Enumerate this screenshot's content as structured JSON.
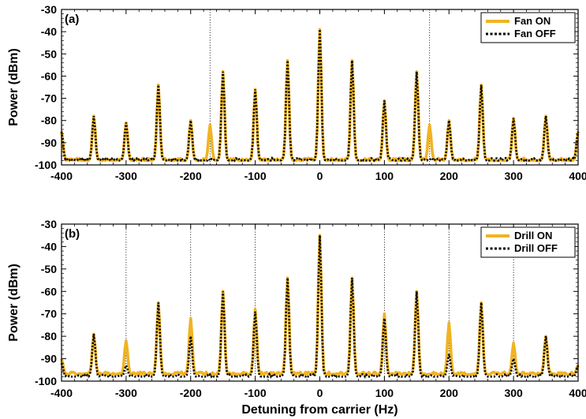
{
  "colors": {
    "on": "#f0b323",
    "off": "#000000"
  },
  "chart_data": [
    {
      "type": "line",
      "panel_label": "(a)",
      "title": "",
      "xlabel": "",
      "ylabel": "Power (dBm)",
      "xlim": [
        -400,
        400
      ],
      "ylim": [
        -100,
        -30
      ],
      "xticks": [
        -400,
        -300,
        -200,
        -100,
        0,
        100,
        200,
        300,
        400
      ],
      "yticks": [
        -30,
        -40,
        -50,
        -60,
        -70,
        -80,
        -90,
        -100
      ],
      "vlines": [
        -170,
        170
      ],
      "legend_position": "top-right",
      "series": [
        {
          "name": "Fan ON",
          "style": "solid",
          "floor": -98,
          "peaks": [
            [
              -400,
              -85
            ],
            [
              -350,
              -78
            ],
            [
              -300,
              -81
            ],
            [
              -250,
              -64
            ],
            [
              -200,
              -80
            ],
            [
              -170,
              -82
            ],
            [
              -150,
              -58
            ],
            [
              -100,
              -66
            ],
            [
              -50,
              -53
            ],
            [
              0,
              -39
            ],
            [
              50,
              -53
            ],
            [
              100,
              -71
            ],
            [
              150,
              -58
            ],
            [
              170,
              -82
            ],
            [
              200,
              -80
            ],
            [
              250,
              -64
            ],
            [
              300,
              -79
            ],
            [
              350,
              -78
            ],
            [
              400,
              -85
            ]
          ]
        },
        {
          "name": "Fan OFF",
          "style": "dotted",
          "floor": -98,
          "peaks": [
            [
              -400,
              -85
            ],
            [
              -350,
              -78
            ],
            [
              -300,
              -81
            ],
            [
              -250,
              -64
            ],
            [
              -200,
              -80
            ],
            [
              -150,
              -58
            ],
            [
              -100,
              -66
            ],
            [
              -50,
              -53
            ],
            [
              0,
              -39
            ],
            [
              50,
              -53
            ],
            [
              100,
              -71
            ],
            [
              150,
              -58
            ],
            [
              200,
              -80
            ],
            [
              250,
              -64
            ],
            [
              300,
              -79
            ],
            [
              350,
              -78
            ],
            [
              400,
              -85
            ]
          ]
        }
      ]
    },
    {
      "type": "line",
      "panel_label": "(b)",
      "title": "",
      "xlabel": "Detuning from carrier (Hz)",
      "ylabel": "Power (dBm)",
      "xlim": [
        -400,
        400
      ],
      "ylim": [
        -100,
        -30
      ],
      "xticks": [
        -400,
        -300,
        -200,
        -100,
        0,
        100,
        200,
        300,
        400
      ],
      "yticks": [
        -30,
        -40,
        -50,
        -60,
        -70,
        -80,
        -90,
        -100
      ],
      "vlines": [
        -300,
        -200,
        -100,
        100,
        200,
        300
      ],
      "legend_position": "top-right",
      "series": [
        {
          "name": "Drill ON",
          "style": "solid",
          "floor": -97,
          "peaks": [
            [
              -400,
              -90
            ],
            [
              -350,
              -79
            ],
            [
              -300,
              -82
            ],
            [
              -250,
              -65
            ],
            [
              -200,
              -72
            ],
            [
              -150,
              -60
            ],
            [
              -100,
              -68
            ],
            [
              -50,
              -54
            ],
            [
              0,
              -35
            ],
            [
              50,
              -54
            ],
            [
              100,
              -70
            ],
            [
              150,
              -60
            ],
            [
              200,
              -74
            ],
            [
              250,
              -65
            ],
            [
              300,
              -83
            ],
            [
              350,
              -80
            ],
            [
              400,
              -93
            ]
          ]
        },
        {
          "name": "Drill OFF",
          "style": "dotted",
          "floor": -98,
          "peaks": [
            [
              -400,
              -92
            ],
            [
              -350,
              -79
            ],
            [
              -300,
              -93
            ],
            [
              -250,
              -65
            ],
            [
              -200,
              -80
            ],
            [
              -150,
              -60
            ],
            [
              -100,
              -69
            ],
            [
              -50,
              -54
            ],
            [
              0,
              -35
            ],
            [
              50,
              -54
            ],
            [
              100,
              -72
            ],
            [
              150,
              -60
            ],
            [
              200,
              -88
            ],
            [
              250,
              -65
            ],
            [
              300,
              -90
            ],
            [
              350,
              -80
            ],
            [
              400,
              -93
            ]
          ]
        }
      ]
    }
  ]
}
